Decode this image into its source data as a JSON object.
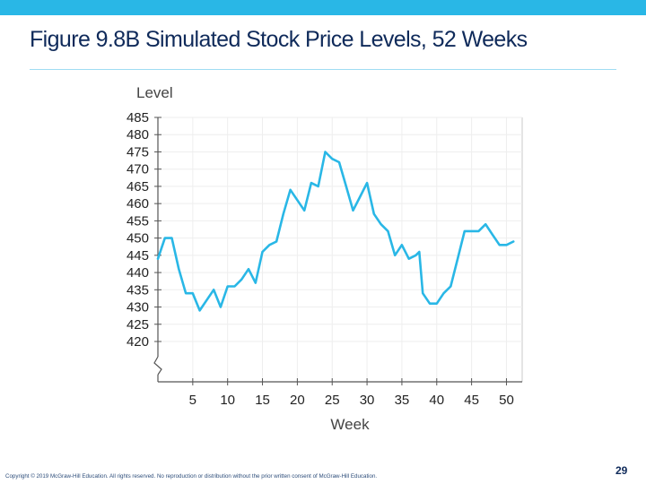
{
  "slide": {
    "title": "Figure 9.8B Simulated Stock Price Levels, 52 Weeks",
    "footer": "Copyright © 2019 McGraw-Hill Education. All rights reserved. No reproduction or distribution without the prior written consent of McGraw-Hill Education.",
    "page_number": "29",
    "accent_color": "#29b7e6",
    "title_color": "#0f2a5a"
  },
  "chart_data": {
    "type": "line",
    "title": "",
    "xlabel": "Week",
    "ylabel": "Level",
    "xlim": [
      0,
      52
    ],
    "ylim": [
      415,
      485
    ],
    "axis_break": true,
    "grid": true,
    "line_color": "#29b7e6",
    "x_ticks": [
      5,
      10,
      15,
      20,
      25,
      30,
      35,
      40,
      45,
      50
    ],
    "y_ticks": [
      420,
      425,
      430,
      435,
      440,
      445,
      450,
      455,
      460,
      465,
      470,
      475,
      480,
      485
    ],
    "x": [
      0,
      1,
      2,
      3,
      4,
      5,
      6,
      7,
      8,
      9,
      10,
      11,
      12,
      13,
      14,
      15,
      16,
      17,
      18,
      19,
      20,
      21,
      22,
      23,
      24,
      25,
      26,
      27,
      28,
      29,
      30,
      31,
      32,
      33,
      34,
      35,
      36,
      37,
      37.5,
      38,
      39,
      40,
      41,
      42,
      43,
      44,
      45,
      46,
      47,
      48,
      49,
      50,
      51
    ],
    "y": [
      444,
      450,
      450,
      441,
      434,
      434,
      429,
      432,
      435,
      430,
      436,
      436,
      438,
      441,
      437,
      446,
      448,
      449,
      457,
      464,
      461,
      458,
      466,
      465,
      475,
      473,
      472,
      465,
      458,
      462,
      466,
      457,
      454,
      452,
      445,
      448,
      444,
      445,
      446,
      434,
      431,
      431,
      434,
      436,
      444,
      452,
      452,
      452,
      454,
      451,
      448,
      448,
      449
    ]
  }
}
